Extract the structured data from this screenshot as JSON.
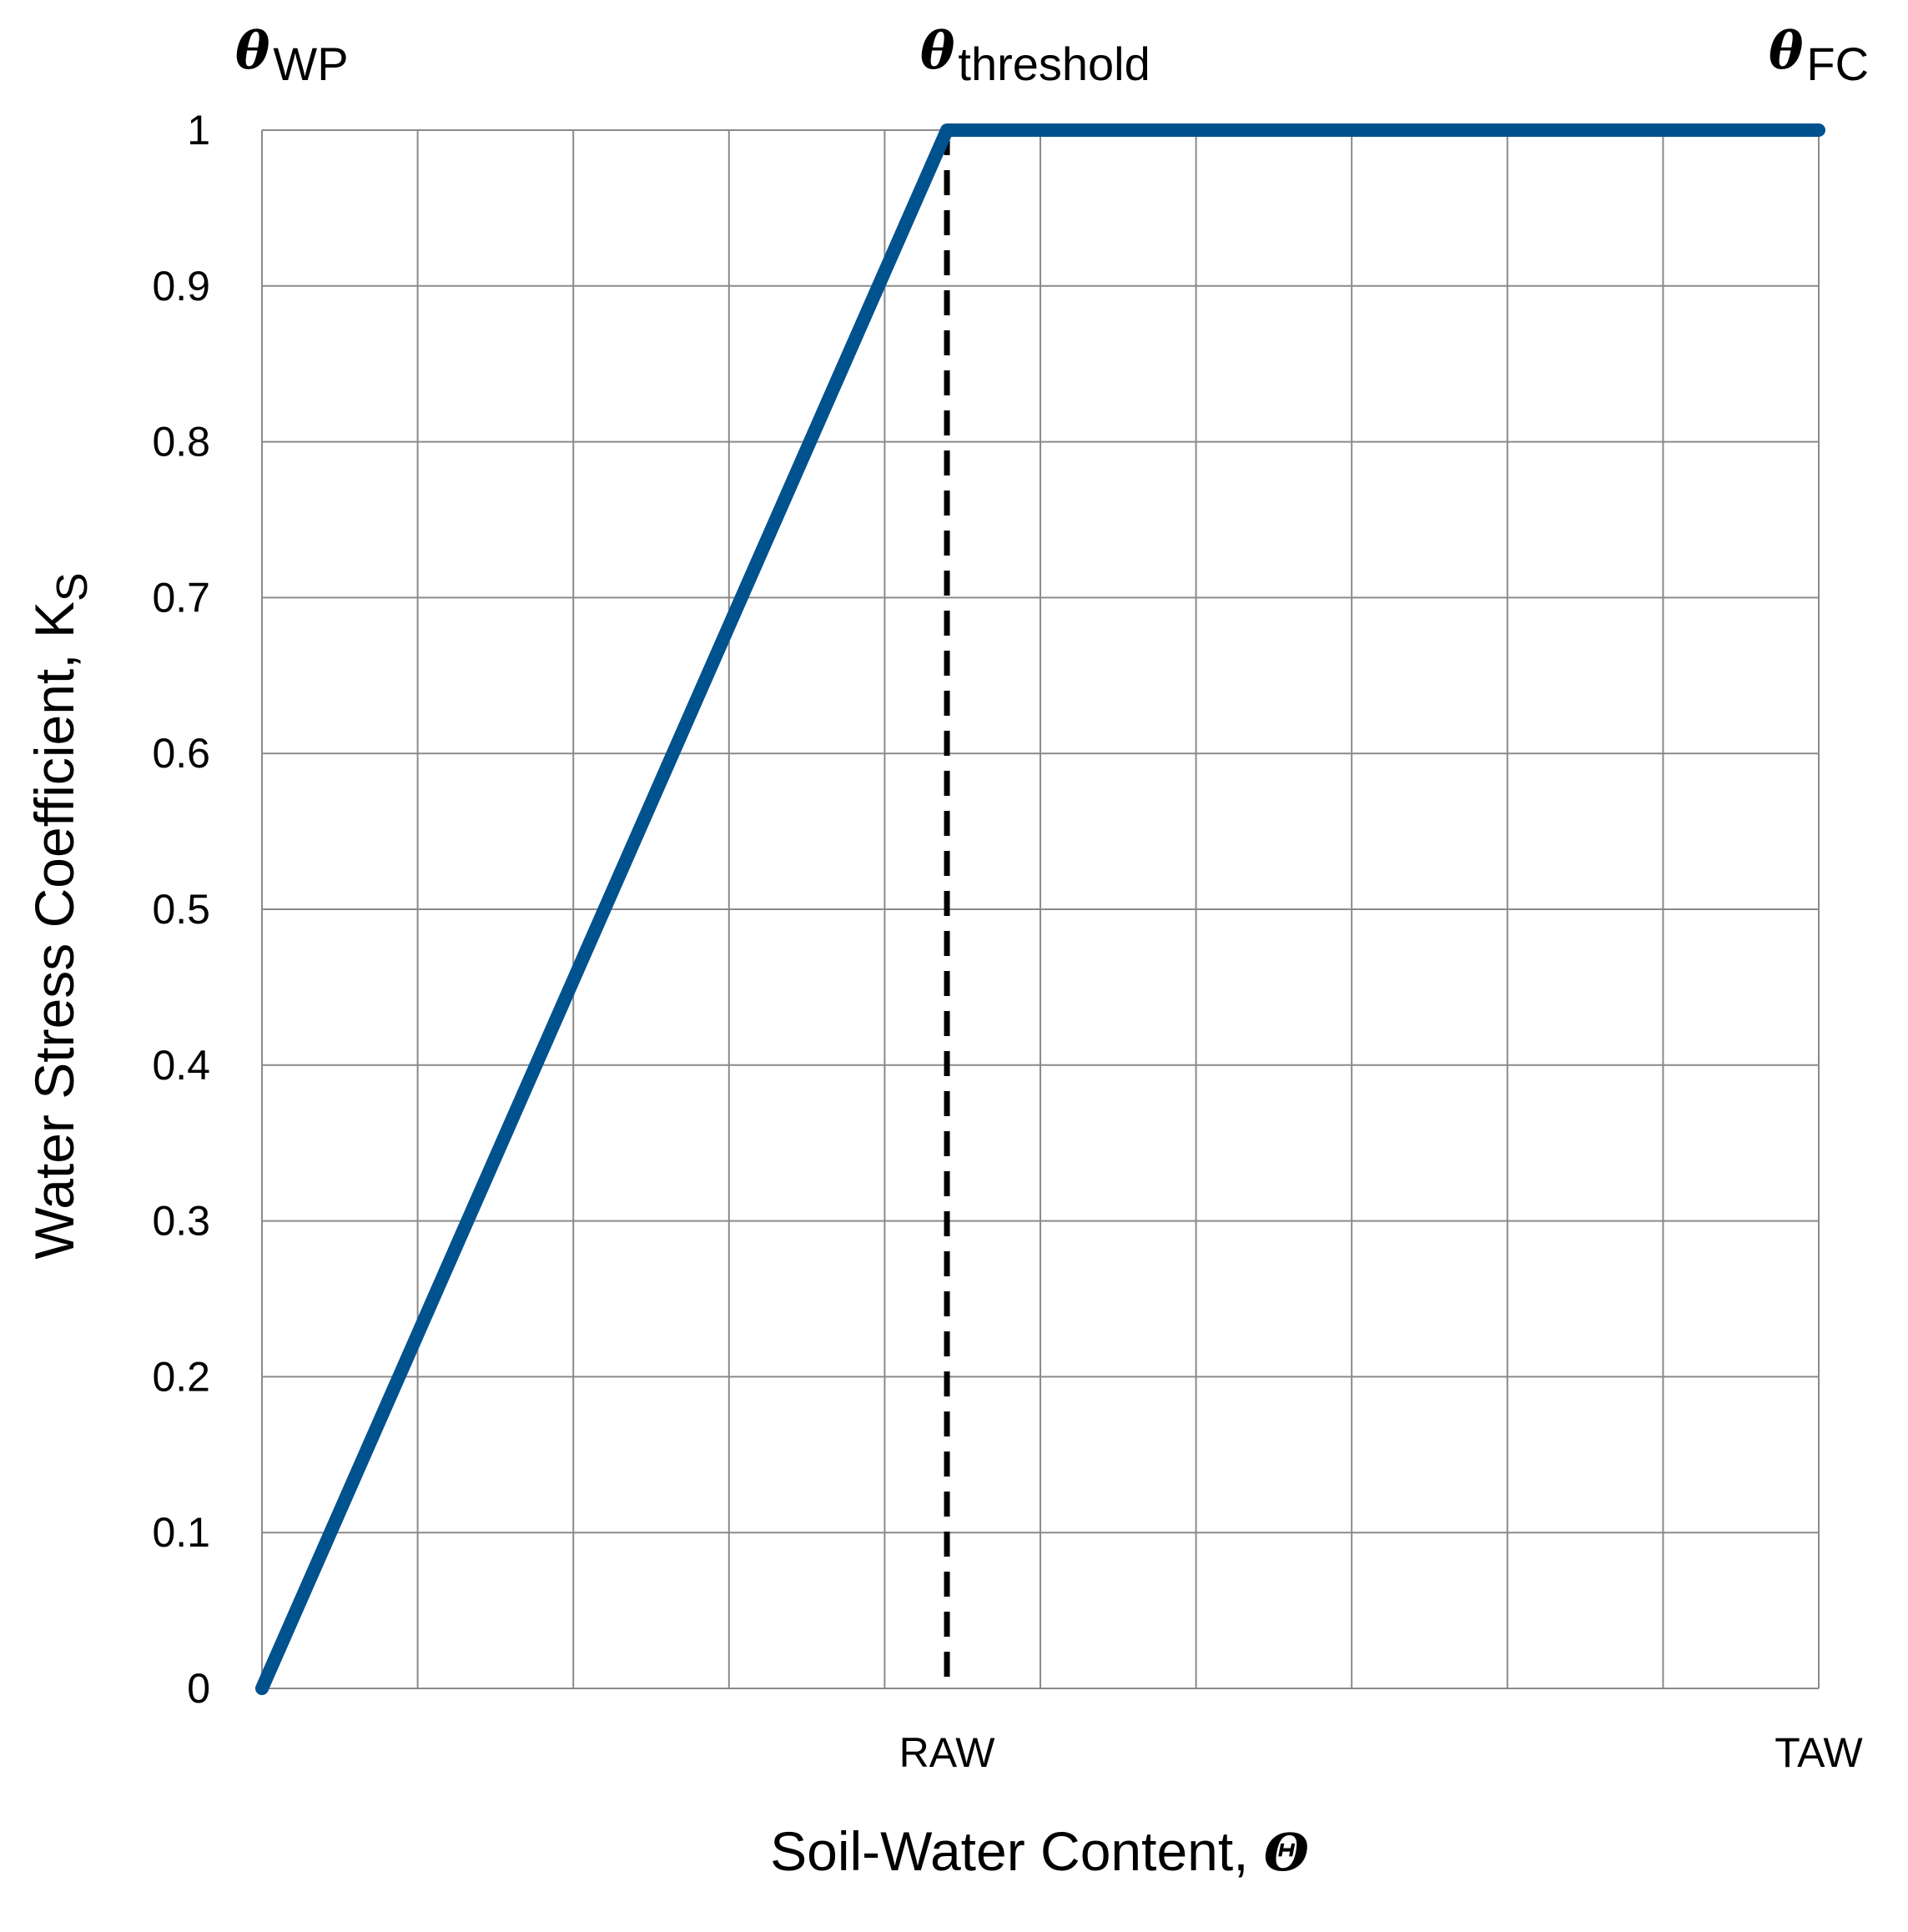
{
  "chart_data": {
    "type": "line",
    "title": "",
    "xlabel": "Soil-Water Content,",
    "xlabel_symbol": "Θ",
    "ylabel": "Water Stress Coefficient, K",
    "ylabel_subscript": "S",
    "xlim": [
      0,
      1
    ],
    "ylim": [
      0,
      1
    ],
    "grid": true,
    "x_tick_labels": [
      {
        "x": 0.44,
        "label": "RAW"
      },
      {
        "x": 1.0,
        "label": "TAW"
      }
    ],
    "y_ticks": [
      0,
      0.1,
      0.2,
      0.3,
      0.4,
      0.5,
      0.6,
      0.7,
      0.8,
      0.9,
      1
    ],
    "y_tick_labels": [
      "0",
      "0.1",
      "0.2",
      "0.3",
      "0.4",
      "0.5",
      "0.6",
      "0.7",
      "0.8",
      "0.9",
      "1"
    ],
    "x_grid_count": 10,
    "series": [
      {
        "color": "#00528f",
        "style": "solid",
        "x": [
          0,
          0.44,
          1.0
        ],
        "y": [
          0,
          1,
          1
        ]
      }
    ],
    "reference_lines": [
      {
        "orientation": "vertical",
        "x": 0.44,
        "y": [
          0,
          1
        ],
        "style": "dashed",
        "color": "#000000"
      }
    ],
    "annotations": [
      {
        "symbol": "θ",
        "subscript": "WP",
        "x": 0
      },
      {
        "symbol": "θ",
        "subscript": "threshold",
        "x": 0.44
      },
      {
        "symbol": "θ",
        "subscript": "FC",
        "x": 1.0
      }
    ]
  }
}
